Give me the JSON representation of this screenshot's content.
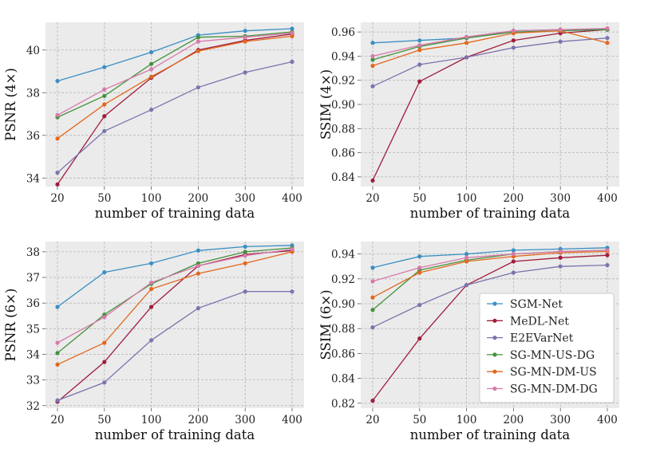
{
  "legend": {
    "position": "lower-right of bottom-right panel",
    "entries": [
      "SGM-Net",
      "MeDL-Net",
      "E2EVarNet",
      "SG-MN-US-DG",
      "SG-MN-DM-US",
      "SG-MN-DM-DG"
    ]
  },
  "series_colors": {
    "SGM-Net": "#3a8fc4",
    "MeDL-Net": "#a01c3c",
    "E2EVarNet": "#7b74ae",
    "SG-MN-US-DG": "#45913b",
    "SG-MN-DM-US": "#e2681c",
    "SG-MN-DM-DG": "#d77aaa"
  },
  "chart_data": [
    {
      "type": "line",
      "id": "psnr4",
      "xlabel": "number of training data",
      "ylabel": "PSNR (4×)",
      "categories": [
        "20",
        "50",
        "100",
        "200",
        "300",
        "400"
      ],
      "ylim": [
        33.6,
        41.3
      ],
      "yticks": [
        34,
        36,
        38,
        40
      ],
      "ytick_labels": [
        "34",
        "36",
        "38",
        "40"
      ],
      "grid": true,
      "series": [
        {
          "name": "SGM-Net",
          "values": [
            38.55,
            39.2,
            39.9,
            40.7,
            40.9,
            41.0
          ]
        },
        {
          "name": "MeDL-Net",
          "values": [
            33.7,
            36.9,
            38.7,
            40.0,
            40.45,
            40.75
          ]
        },
        {
          "name": "E2EVarNet",
          "values": [
            34.25,
            36.2,
            37.2,
            38.25,
            38.95,
            39.45
          ]
        },
        {
          "name": "SG-MN-US-DG",
          "values": [
            36.85,
            37.85,
            39.35,
            40.6,
            40.65,
            40.85
          ]
        },
        {
          "name": "SG-MN-DM-US",
          "values": [
            35.85,
            37.45,
            38.75,
            39.95,
            40.4,
            40.65
          ]
        },
        {
          "name": "SG-MN-DM-DG",
          "values": [
            36.95,
            38.15,
            39.1,
            40.4,
            40.6,
            40.8
          ]
        }
      ]
    },
    {
      "type": "line",
      "id": "ssim4",
      "xlabel": "number of training data",
      "ylabel": "SSIM (4×)",
      "categories": [
        "20",
        "50",
        "100",
        "200",
        "300",
        "400"
      ],
      "ylim": [
        0.832,
        0.968
      ],
      "yticks": [
        0.84,
        0.86,
        0.88,
        0.9,
        0.92,
        0.94,
        0.96
      ],
      "ytick_labels": [
        "0.84",
        "0.86",
        "0.88",
        "0.90",
        "0.92",
        "0.94",
        "0.96"
      ],
      "grid": true,
      "series": [
        {
          "name": "SGM-Net",
          "values": [
            0.951,
            0.953,
            0.955,
            0.961,
            0.962,
            0.962
          ]
        },
        {
          "name": "MeDL-Net",
          "values": [
            0.837,
            0.919,
            0.939,
            0.953,
            0.959,
            0.962
          ]
        },
        {
          "name": "E2EVarNet",
          "values": [
            0.915,
            0.933,
            0.939,
            0.947,
            0.952,
            0.955
          ]
        },
        {
          "name": "SG-MN-US-DG",
          "values": [
            0.937,
            0.948,
            0.955,
            0.96,
            0.961,
            0.962
          ]
        },
        {
          "name": "SG-MN-DM-US",
          "values": [
            0.932,
            0.945,
            0.951,
            0.959,
            0.961,
            0.951
          ]
        },
        {
          "name": "SG-MN-DM-DG",
          "values": [
            0.94,
            0.949,
            0.956,
            0.961,
            0.962,
            0.963
          ]
        }
      ]
    },
    {
      "type": "line",
      "id": "psnr6",
      "xlabel": "number of training data",
      "ylabel": "PSNR (6×)",
      "categories": [
        "20",
        "50",
        "100",
        "200",
        "300",
        "400"
      ],
      "ylim": [
        31.9,
        38.4
      ],
      "yticks": [
        32,
        33,
        34,
        35,
        36,
        37,
        38
      ],
      "ytick_labels": [
        "32",
        "33",
        "34",
        "35",
        "36",
        "37",
        "38"
      ],
      "grid": true,
      "series": [
        {
          "name": "SGM-Net",
          "values": [
            35.85,
            37.2,
            37.55,
            38.05,
            38.2,
            38.25
          ]
        },
        {
          "name": "MeDL-Net",
          "values": [
            32.15,
            33.7,
            35.85,
            37.45,
            37.9,
            38.05
          ]
        },
        {
          "name": "E2EVarNet",
          "values": [
            32.2,
            32.9,
            34.55,
            35.8,
            36.45,
            36.45
          ]
        },
        {
          "name": "SG-MN-US-DG",
          "values": [
            34.05,
            35.55,
            36.75,
            37.55,
            38.0,
            38.15
          ]
        },
        {
          "name": "SG-MN-DM-US",
          "values": [
            33.6,
            34.45,
            36.55,
            37.15,
            37.55,
            38.0
          ]
        },
        {
          "name": "SG-MN-DM-DG",
          "values": [
            34.45,
            35.45,
            36.8,
            37.45,
            37.85,
            38.1
          ]
        }
      ]
    },
    {
      "type": "line",
      "id": "ssim6",
      "xlabel": "number of training data",
      "ylabel": "SSIM (6×)",
      "categories": [
        "20",
        "50",
        "100",
        "200",
        "300",
        "400"
      ],
      "ylim": [
        0.816,
        0.95
      ],
      "yticks": [
        0.82,
        0.84,
        0.86,
        0.88,
        0.9,
        0.92,
        0.94
      ],
      "ytick_labels": [
        "0.82",
        "0.84",
        "0.86",
        "0.88",
        "0.90",
        "0.92",
        "0.94"
      ],
      "grid": true,
      "series": [
        {
          "name": "SGM-Net",
          "values": [
            0.929,
            0.938,
            0.94,
            0.943,
            0.944,
            0.945
          ]
        },
        {
          "name": "MeDL-Net",
          "values": [
            0.822,
            0.872,
            0.915,
            0.934,
            0.937,
            0.939
          ]
        },
        {
          "name": "E2EVarNet",
          "values": [
            0.881,
            0.899,
            0.915,
            0.925,
            0.93,
            0.931
          ]
        },
        {
          "name": "SG-MN-US-DG",
          "values": [
            0.895,
            0.927,
            0.935,
            0.94,
            0.942,
            0.943
          ]
        },
        {
          "name": "SG-MN-DM-US",
          "values": [
            0.905,
            0.925,
            0.934,
            0.938,
            0.941,
            0.942
          ]
        },
        {
          "name": "SG-MN-DM-DG",
          "values": [
            0.918,
            0.929,
            0.937,
            0.94,
            0.942,
            0.943
          ]
        }
      ]
    }
  ]
}
